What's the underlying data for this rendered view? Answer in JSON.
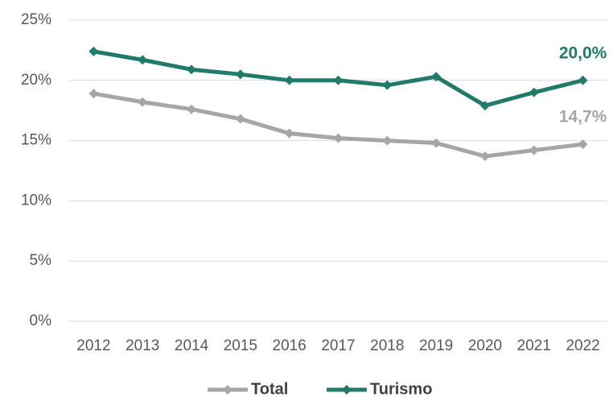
{
  "chart_data": {
    "type": "line",
    "categories": [
      "2012",
      "2013",
      "2014",
      "2015",
      "2016",
      "2017",
      "2018",
      "2019",
      "2020",
      "2021",
      "2022"
    ],
    "series": [
      {
        "name": "Total",
        "color": "#a6a6a6",
        "values": [
          18.9,
          18.2,
          17.6,
          16.8,
          15.6,
          15.2,
          15.0,
          14.8,
          13.7,
          14.2,
          14.7
        ],
        "value_labels": [
          null,
          null,
          null,
          null,
          null,
          null,
          null,
          null,
          null,
          null,
          "14,7%"
        ]
      },
      {
        "name": "Turismo",
        "color": "#217a6a",
        "values": [
          22.4,
          21.7,
          20.9,
          20.5,
          20.0,
          20.0,
          19.6,
          20.3,
          17.9,
          19.0,
          20.0
        ],
        "value_labels": [
          null,
          null,
          null,
          null,
          null,
          null,
          null,
          null,
          null,
          null,
          "20,0%"
        ]
      }
    ],
    "ylim": [
      0,
      25
    ],
    "yticks": [
      {
        "value": 0,
        "label": "0%"
      },
      {
        "value": 5,
        "label": "5%"
      },
      {
        "value": 10,
        "label": "10%"
      },
      {
        "value": 15,
        "label": "15%"
      },
      {
        "value": 20,
        "label": "20%"
      },
      {
        "value": 25,
        "label": "25%"
      }
    ],
    "grid": true,
    "legend": "bottom"
  }
}
